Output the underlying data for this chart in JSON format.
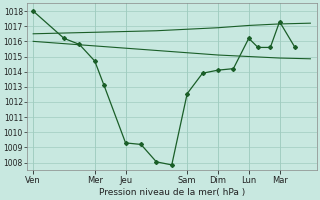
{
  "background_color": "#c8e8e0",
  "grid_color": "#a0ccc0",
  "line_color": "#1a5e28",
  "x_labels": [
    "Ven",
    "Mer",
    "Jeu",
    "Sam",
    "Dim",
    "Lun",
    "Mar"
  ],
  "x_tick_pos": [
    0,
    2,
    3,
    5,
    6,
    7,
    8
  ],
  "ylim": [
    1007.5,
    1018.5
  ],
  "yticks": [
    1008,
    1009,
    1010,
    1011,
    1012,
    1013,
    1014,
    1015,
    1016,
    1017,
    1018
  ],
  "xlim": [
    -0.2,
    9.2
  ],
  "xlabel": "Pression niveau de la mer( hPa )",
  "jagged_x": [
    0,
    1,
    1.5,
    2,
    2.3,
    3,
    3.5,
    4,
    4.5,
    5,
    5.5,
    6,
    6.5,
    7,
    7.3,
    7.7,
    8,
    8.5
  ],
  "jagged_y": [
    1018.0,
    1016.2,
    1015.8,
    1014.7,
    1013.1,
    1009.3,
    1009.2,
    1008.05,
    1007.85,
    1012.55,
    1013.9,
    1014.1,
    1014.2,
    1016.2,
    1015.6,
    1015.6,
    1017.3,
    1015.6
  ],
  "upper_x": [
    0,
    1,
    2,
    3,
    4,
    5,
    6,
    7,
    8,
    9
  ],
  "upper_y": [
    1016.5,
    1016.55,
    1016.6,
    1016.65,
    1016.7,
    1016.8,
    1016.9,
    1017.05,
    1017.15,
    1017.2
  ],
  "lower_x": [
    0,
    1,
    2,
    3,
    4,
    5,
    6,
    7,
    8,
    9
  ],
  "lower_y": [
    1016.0,
    1015.85,
    1015.7,
    1015.55,
    1015.4,
    1015.25,
    1015.1,
    1015.0,
    1014.9,
    1014.85
  ],
  "ytick_fontsize": 5.5,
  "xtick_fontsize": 6.0,
  "xlabel_fontsize": 6.5
}
